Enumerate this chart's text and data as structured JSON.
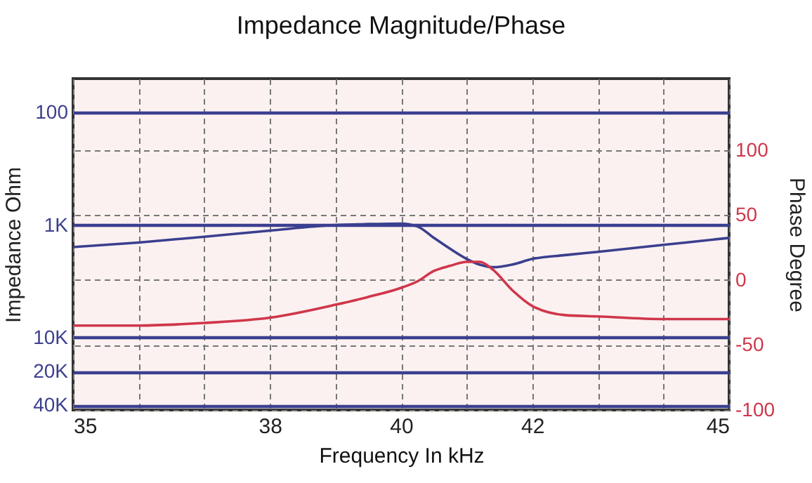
{
  "chart_data": {
    "type": "line",
    "title": "Impedance Magnitude/Phase",
    "xlabel": "Frequency In kHz",
    "ylabel": "Impedance Ohm",
    "y2label": "Phase Degree",
    "x": [
      35,
      36,
      37,
      38,
      39,
      39.5,
      40,
      40.25,
      40.5,
      40.75,
      41,
      41.2,
      41.4,
      41.7,
      42,
      42.5,
      43,
      44,
      45
    ],
    "series": [
      {
        "color": "#3b3f8f",
        "values": [
          1570,
          1430,
          1270,
          1120,
          1000,
          980,
          970,
          1030,
          1300,
          1630,
          2000,
          2250,
          2370,
          2240,
          2000,
          1850,
          1730,
          1500,
          1300
        ]
      },
      {
        "color": "#d0364a",
        "axis": "y2",
        "values": [
          -35,
          -35,
          -33,
          -29,
          -19,
          -13,
          -6,
          -1,
          7,
          11,
          14,
          14,
          8,
          -8,
          -20,
          -27,
          -28,
          -30,
          -30
        ]
      }
    ],
    "xlim": [
      35,
      45
    ],
    "xticks": [
      35,
      {
        "value": 36,
        "label": null
      },
      {
        "value": 37,
        "label": null
      },
      38,
      {
        "value": 39,
        "label": null
      },
      40,
      {
        "value": 41,
        "label": null
      },
      42,
      {
        "value": 43,
        "label": null
      },
      {
        "value": 44,
        "label": null
      },
      45
    ],
    "ylim": [
      44000,
      50
    ],
    "log": "y",
    "yticks": [
      100,
      {
        "value": 1000,
        "label": "1K"
      },
      {
        "value": 10000,
        "label": "10K"
      },
      {
        "value": 20000,
        "label": "20K"
      },
      {
        "value": 40000,
        "label": "40K"
      }
    ],
    "y2lim": [
      -100,
      155
    ],
    "y2ticks": [
      -100,
      -50,
      0,
      50,
      100
    ],
    "grid": true
  }
}
